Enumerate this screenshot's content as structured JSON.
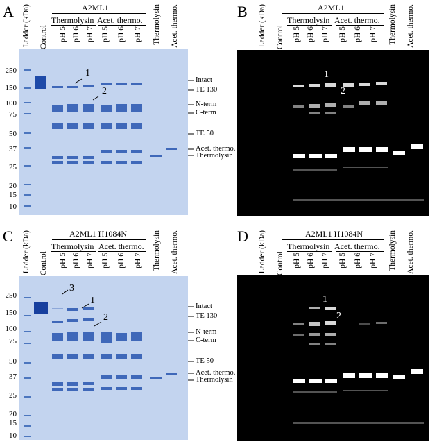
{
  "panels": [
    {
      "letter": "A",
      "type": "coomassie",
      "title": "A2ML1",
      "lanes": [
        "Ladder (kDa)",
        "Control",
        "pH 5",
        "pH 6",
        "pH 7",
        "pH 5",
        "pH 6",
        "pH 7",
        "Thermolysin",
        "Acet. thermo."
      ],
      "groups": [
        "Thermolysin",
        "Acet. thermo."
      ],
      "mw": [
        "250",
        "150",
        "100",
        "75",
        "50",
        "37",
        "25",
        "20",
        "15",
        "10"
      ],
      "right_labels": [
        "Intact",
        "TE 130",
        "N-term",
        "C-term",
        "TE 50",
        "Acet. thermo.",
        "Thermolysin"
      ],
      "marks": [
        "1",
        "2"
      ]
    },
    {
      "letter": "B",
      "type": "fluor",
      "title": "A2ML1",
      "lanes": [
        "Ladder (kDa)",
        "Control",
        "pH 5",
        "pH 6",
        "pH 7",
        "pH 5",
        "pH 6",
        "pH 7",
        "Thermolysin",
        "Acet. thermo."
      ],
      "groups": [
        "Thermolysin",
        "Acet. thermo."
      ],
      "marks": [
        "1",
        "2"
      ]
    },
    {
      "letter": "C",
      "type": "coomassie",
      "title": "A2ML1 H1084N",
      "lanes": [
        "Ladder (kDa)",
        "Control",
        "pH 5",
        "pH 6",
        "pH 7",
        "pH 5",
        "pH 6",
        "pH 7",
        "Thermolysin",
        "Acet. thermo."
      ],
      "groups": [
        "Thermolysin",
        "Acet. thermo."
      ],
      "mw": [
        "250",
        "150",
        "100",
        "75",
        "50",
        "37",
        "25",
        "20",
        "15",
        "10"
      ],
      "right_labels": [
        "Intact",
        "TE 130",
        "N-term",
        "C-term",
        "TE 50",
        "Acet. thermo.",
        "Thermolysin"
      ],
      "marks": [
        "3",
        "1",
        "2"
      ]
    },
    {
      "letter": "D",
      "type": "fluor",
      "title": "A2ML1 H1084N",
      "lanes": [
        "Ladder (kDa)",
        "Control",
        "pH 5",
        "pH 6",
        "pH 7",
        "pH 5",
        "pH 6",
        "pH 7",
        "Thermolysin",
        "Acet. thermo."
      ],
      "groups": [
        "Thermolysin",
        "Acet. thermo."
      ],
      "marks": [
        "1",
        "2"
      ]
    }
  ]
}
